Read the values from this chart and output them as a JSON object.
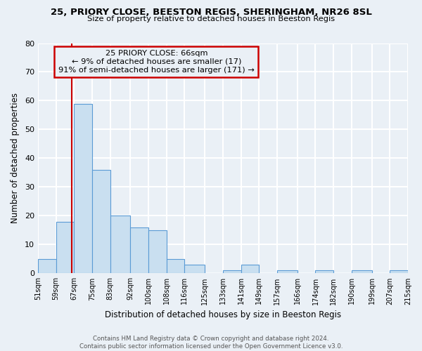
{
  "title": "25, PRIORY CLOSE, BEESTON REGIS, SHERINGHAM, NR26 8SL",
  "subtitle": "Size of property relative to detached houses in Beeston Regis",
  "xlabel": "Distribution of detached houses by size in Beeston Regis",
  "ylabel": "Number of detached properties",
  "footer_line1": "Contains HM Land Registry data © Crown copyright and database right 2024.",
  "footer_line2": "Contains public sector information licensed under the Open Government Licence v3.0.",
  "annotation_line1": "25 PRIORY CLOSE: 66sqm",
  "annotation_line2": "← 9% of detached houses are smaller (17)",
  "annotation_line3": "91% of semi-detached houses are larger (171) →",
  "bar_edges": [
    51,
    59,
    67,
    75,
    83,
    92,
    100,
    108,
    116,
    125,
    133,
    141,
    149,
    157,
    166,
    174,
    182,
    190,
    199,
    207,
    215
  ],
  "bar_heights": [
    5,
    18,
    59,
    36,
    20,
    16,
    15,
    5,
    3,
    0,
    1,
    3,
    0,
    1,
    0,
    1,
    0,
    1,
    0,
    1
  ],
  "bar_color": "#c9dff0",
  "bar_edge_color": "#5b9bd5",
  "vline_x": 66,
  "vline_color": "#cc0000",
  "ylim": [
    0,
    80
  ],
  "yticks": [
    0,
    10,
    20,
    30,
    40,
    50,
    60,
    70,
    80
  ],
  "xtick_labels": [
    "51sqm",
    "59sqm",
    "67sqm",
    "75sqm",
    "83sqm",
    "92sqm",
    "100sqm",
    "108sqm",
    "116sqm",
    "125sqm",
    "133sqm",
    "141sqm",
    "149sqm",
    "157sqm",
    "166sqm",
    "174sqm",
    "182sqm",
    "190sqm",
    "199sqm",
    "207sqm",
    "215sqm"
  ],
  "bg_color": "#eaf0f6",
  "grid_color": "#ffffff",
  "box_color": "#cc0000"
}
